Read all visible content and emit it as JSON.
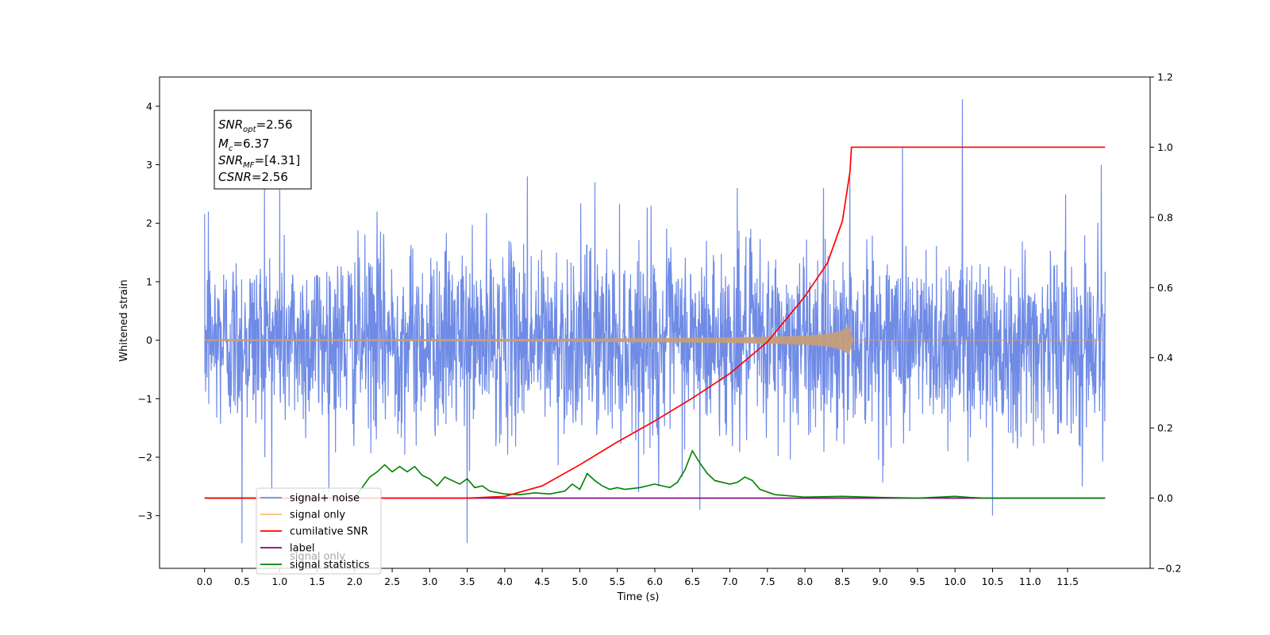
{
  "chart_data": {
    "type": "line",
    "xlabel": "Time (s)",
    "ylabel": "Whitened strain",
    "xlim": [
      -0.6,
      12.6
    ],
    "ylim": [
      -3.9,
      4.5
    ],
    "y2lim": [
      -0.2,
      1.2
    ],
    "grid": false,
    "legend_position": "lower-left",
    "x_ticks": [
      "0.0",
      "0.5",
      "1.0",
      "1.5",
      "2.0",
      "2.5",
      "3.0",
      "3.5",
      "4.0",
      "4.5",
      "5.0",
      "5.5",
      "6.0",
      "6.5",
      "7.0",
      "7.5",
      "8.0",
      "8.5",
      "9.0",
      "9.5",
      "10.0",
      "10.5",
      "11.0",
      "11.5"
    ],
    "y_ticks": [
      "4",
      "3",
      "2",
      "1",
      "0",
      "−1",
      "−2",
      "−3"
    ],
    "y2_ticks": [
      "1.2",
      "1.0",
      "0.8",
      "0.6",
      "0.4",
      "0.2",
      "0.0",
      "−0.2"
    ],
    "annotation": {
      "snr_opt": {
        "base": "SNR",
        "sub": "opt",
        "value": "=2.56"
      },
      "mc": {
        "base": "M",
        "sub": "c",
        "value": "=6.37"
      },
      "snr_mf": {
        "base": "SNR",
        "sub": "MF",
        "value": "=[4.31]"
      },
      "csnr": {
        "base": "CSNR",
        "value": "=2.56"
      }
    },
    "series": [
      {
        "name": "signal+ noise",
        "axis": "left",
        "color": "#6f8be6",
        "envelope": {
          "x_start": 0.0,
          "x_end": 12.0,
          "typical_amplitude": 1.4,
          "max": 4.12,
          "min": -3.47
        },
        "peaks": [
          [
            0.05,
            2.2
          ],
          [
            0.5,
            -3.47
          ],
          [
            0.8,
            2.6
          ],
          [
            1.0,
            2.6
          ],
          [
            2.3,
            2.2
          ],
          [
            3.5,
            -3.47
          ],
          [
            4.3,
            2.8
          ],
          [
            5.2,
            2.7
          ],
          [
            5.95,
            2.3
          ],
          [
            6.05,
            -2.5
          ],
          [
            6.6,
            -2.9
          ],
          [
            7.1,
            2.6
          ],
          [
            8.6,
            2.8
          ],
          [
            9.3,
            3.3
          ],
          [
            10.1,
            4.12
          ],
          [
            10.5,
            -3.0
          ],
          [
            11.95,
            3.0
          ]
        ]
      },
      {
        "name": "signal only",
        "axis": "left",
        "color": "#f5c26b",
        "x": [
          0.0,
          2.0,
          4.0,
          5.0,
          6.0,
          7.0,
          7.5,
          8.0,
          8.3,
          8.5,
          8.6,
          8.62,
          12.0
        ],
        "amplitude": [
          0.01,
          0.01,
          0.015,
          0.02,
          0.03,
          0.04,
          0.055,
          0.07,
          0.1,
          0.16,
          0.26,
          0.0,
          0.0
        ]
      },
      {
        "name": "cumilative SNR",
        "axis": "right",
        "color": "#ff0000",
        "x": [
          0.0,
          3.5,
          4.0,
          4.5,
          5.0,
          5.5,
          6.0,
          6.5,
          7.0,
          7.5,
          8.0,
          8.3,
          8.5,
          8.6,
          8.62,
          12.0
        ],
        "y": [
          0.0,
          0.0,
          0.005,
          0.035,
          0.095,
          0.16,
          0.22,
          0.285,
          0.355,
          0.445,
          0.575,
          0.67,
          0.79,
          0.93,
          1.0,
          1.0
        ]
      },
      {
        "name": "label",
        "axis": "right",
        "color": "#800080",
        "x": [
          0.0,
          12.0
        ],
        "y": [
          0.0,
          0.0
        ]
      },
      {
        "name": "signal statistics",
        "axis": "right",
        "color": "#008000",
        "x": [
          0.0,
          2.0,
          2.1,
          2.2,
          2.3,
          2.4,
          2.5,
          2.6,
          2.7,
          2.8,
          2.9,
          3.0,
          3.1,
          3.2,
          3.3,
          3.4,
          3.5,
          3.6,
          3.7,
          3.8,
          4.0,
          4.2,
          4.4,
          4.6,
          4.8,
          4.9,
          5.0,
          5.1,
          5.2,
          5.3,
          5.4,
          5.5,
          5.6,
          5.8,
          6.0,
          6.1,
          6.2,
          6.3,
          6.4,
          6.5,
          6.6,
          6.7,
          6.8,
          7.0,
          7.1,
          7.2,
          7.3,
          7.4,
          7.6,
          8.0,
          8.5,
          9.0,
          9.5,
          10.0,
          10.2,
          10.4,
          12.0
        ],
        "y": [
          0.0,
          0.0,
          0.03,
          0.06,
          0.075,
          0.095,
          0.075,
          0.09,
          0.075,
          0.09,
          0.065,
          0.055,
          0.035,
          0.06,
          0.05,
          0.04,
          0.055,
          0.03,
          0.035,
          0.02,
          0.012,
          0.01,
          0.015,
          0.012,
          0.02,
          0.04,
          0.025,
          0.07,
          0.05,
          0.035,
          0.025,
          0.03,
          0.025,
          0.03,
          0.04,
          0.035,
          0.03,
          0.045,
          0.08,
          0.135,
          0.1,
          0.07,
          0.05,
          0.04,
          0.045,
          0.06,
          0.05,
          0.025,
          0.01,
          0.003,
          0.005,
          0.002,
          0.0,
          0.005,
          0.002,
          0.0,
          0.0
        ]
      }
    ],
    "legend_hidden_entry": {
      "name": "signal only",
      "color": "#800080"
    }
  }
}
